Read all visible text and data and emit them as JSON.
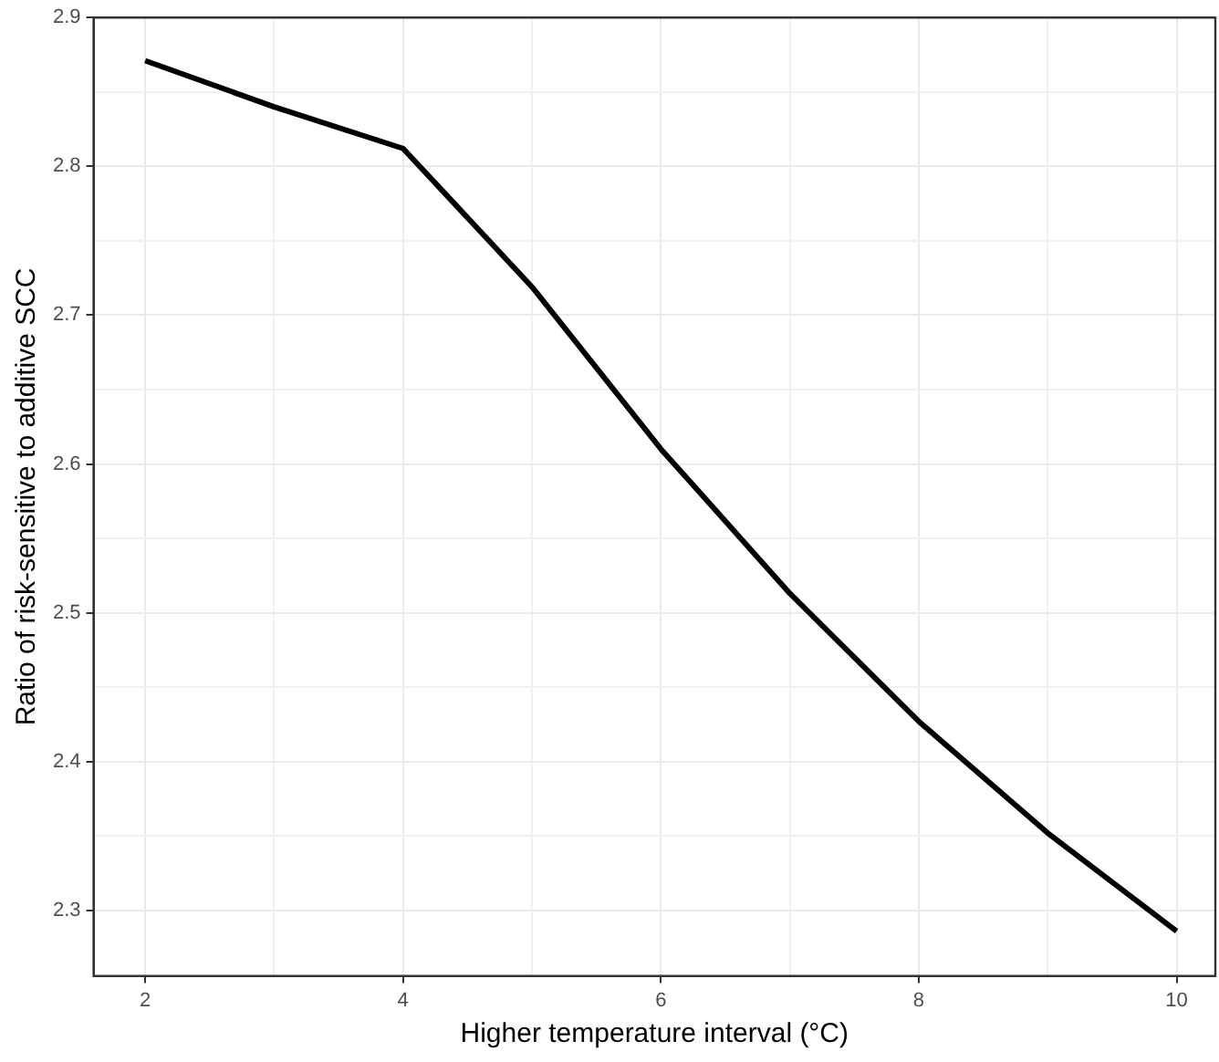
{
  "chart_data": {
    "type": "line",
    "xlabel": "Higher temperature interval (°C)",
    "ylabel": "Ratio of risk-sensitive to additive SCC",
    "x": [
      2,
      3,
      4,
      5,
      6,
      7,
      8,
      9,
      10
    ],
    "series": [
      {
        "color": "#000000",
        "values": [
          2.871,
          2.84,
          2.812,
          2.719,
          2.61,
          2.513,
          2.427,
          2.352,
          2.286
        ]
      }
    ],
    "xlim": [
      1.6,
      10.3
    ],
    "xticks": [
      2,
      {
        "value": 3,
        "label": null
      },
      4,
      {
        "value": 5,
        "label": null
      },
      6,
      {
        "value": 7,
        "label": null
      },
      8,
      {
        "value": 9,
        "label": null
      },
      10
    ],
    "ylim": [
      2.256,
      2.9
    ],
    "yticks": [
      2.3,
      {
        "value": 2.35,
        "label": null
      },
      2.4,
      {
        "value": 2.45,
        "label": null
      },
      2.5,
      {
        "value": 2.55,
        "label": null
      },
      2.6,
      {
        "value": 2.65,
        "label": null
      },
      2.7,
      {
        "value": 2.75,
        "label": null
      },
      2.8,
      {
        "value": 2.85,
        "label": null
      },
      2.9
    ],
    "grid": true,
    "legend": false,
    "marker": "none",
    "line_style": "solid"
  }
}
